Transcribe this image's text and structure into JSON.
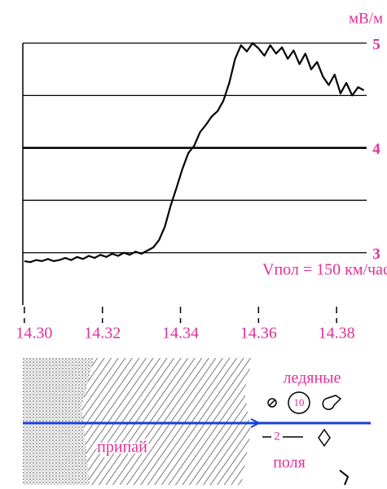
{
  "chart_data": {
    "type": "line",
    "y_label": "мВ/м",
    "annotation": "Vпол = 150 км/час",
    "x": [
      14.3,
      14.3015,
      14.303,
      14.3045,
      14.306,
      14.3075,
      14.309,
      14.3105,
      14.312,
      14.3135,
      14.315,
      14.3165,
      14.318,
      14.3195,
      14.321,
      14.3225,
      14.324,
      14.3255,
      14.327,
      14.3285,
      14.33,
      14.3315,
      14.333,
      14.3345,
      14.336,
      14.3375,
      14.339,
      14.3405,
      14.342,
      14.3435,
      14.345,
      14.3465,
      14.348,
      14.3495,
      14.351,
      14.3525,
      14.354,
      14.3555,
      14.357,
      14.3585,
      14.36,
      14.3615,
      14.363,
      14.3645,
      14.366,
      14.3675,
      14.369,
      14.3705,
      14.372,
      14.3735,
      14.375,
      14.3765,
      14.378,
      14.3795,
      14.381,
      14.3825,
      14.384,
      14.3855,
      14.387
    ],
    "values": [
      2.92,
      2.91,
      2.93,
      2.92,
      2.94,
      2.92,
      2.93,
      2.95,
      2.93,
      2.96,
      2.94,
      2.97,
      2.95,
      2.98,
      2.96,
      2.99,
      2.97,
      3.0,
      2.98,
      3.01,
      2.99,
      3.02,
      3.05,
      3.12,
      3.25,
      3.45,
      3.62,
      3.8,
      3.95,
      4.02,
      4.15,
      4.22,
      4.3,
      4.35,
      4.45,
      4.62,
      4.85,
      4.98,
      4.92,
      5.0,
      4.95,
      4.88,
      4.98,
      4.9,
      4.96,
      4.85,
      4.93,
      4.8,
      4.9,
      4.75,
      4.82,
      4.68,
      4.6,
      4.7,
      4.52,
      4.62,
      4.5,
      4.58,
      4.55
    ],
    "color": "#000000",
    "label_color": "#e0309a",
    "xlim": [
      14.2996,
      14.3877
    ],
    "xticks": [
      {
        "value": 14.3,
        "label": "14.30"
      },
      14.32,
      14.34,
      14.36,
      14.38
    ],
    "ylim": [
      2.5,
      5
    ],
    "yticks": [
      3,
      {
        "value": 3.5,
        "label": null
      },
      4,
      {
        "value": 4.5,
        "label": null
      },
      5
    ],
    "grid": true
  },
  "map": {
    "labels": [
      "ледяные",
      "10",
      "2",
      "припай",
      "поля"
    ]
  }
}
